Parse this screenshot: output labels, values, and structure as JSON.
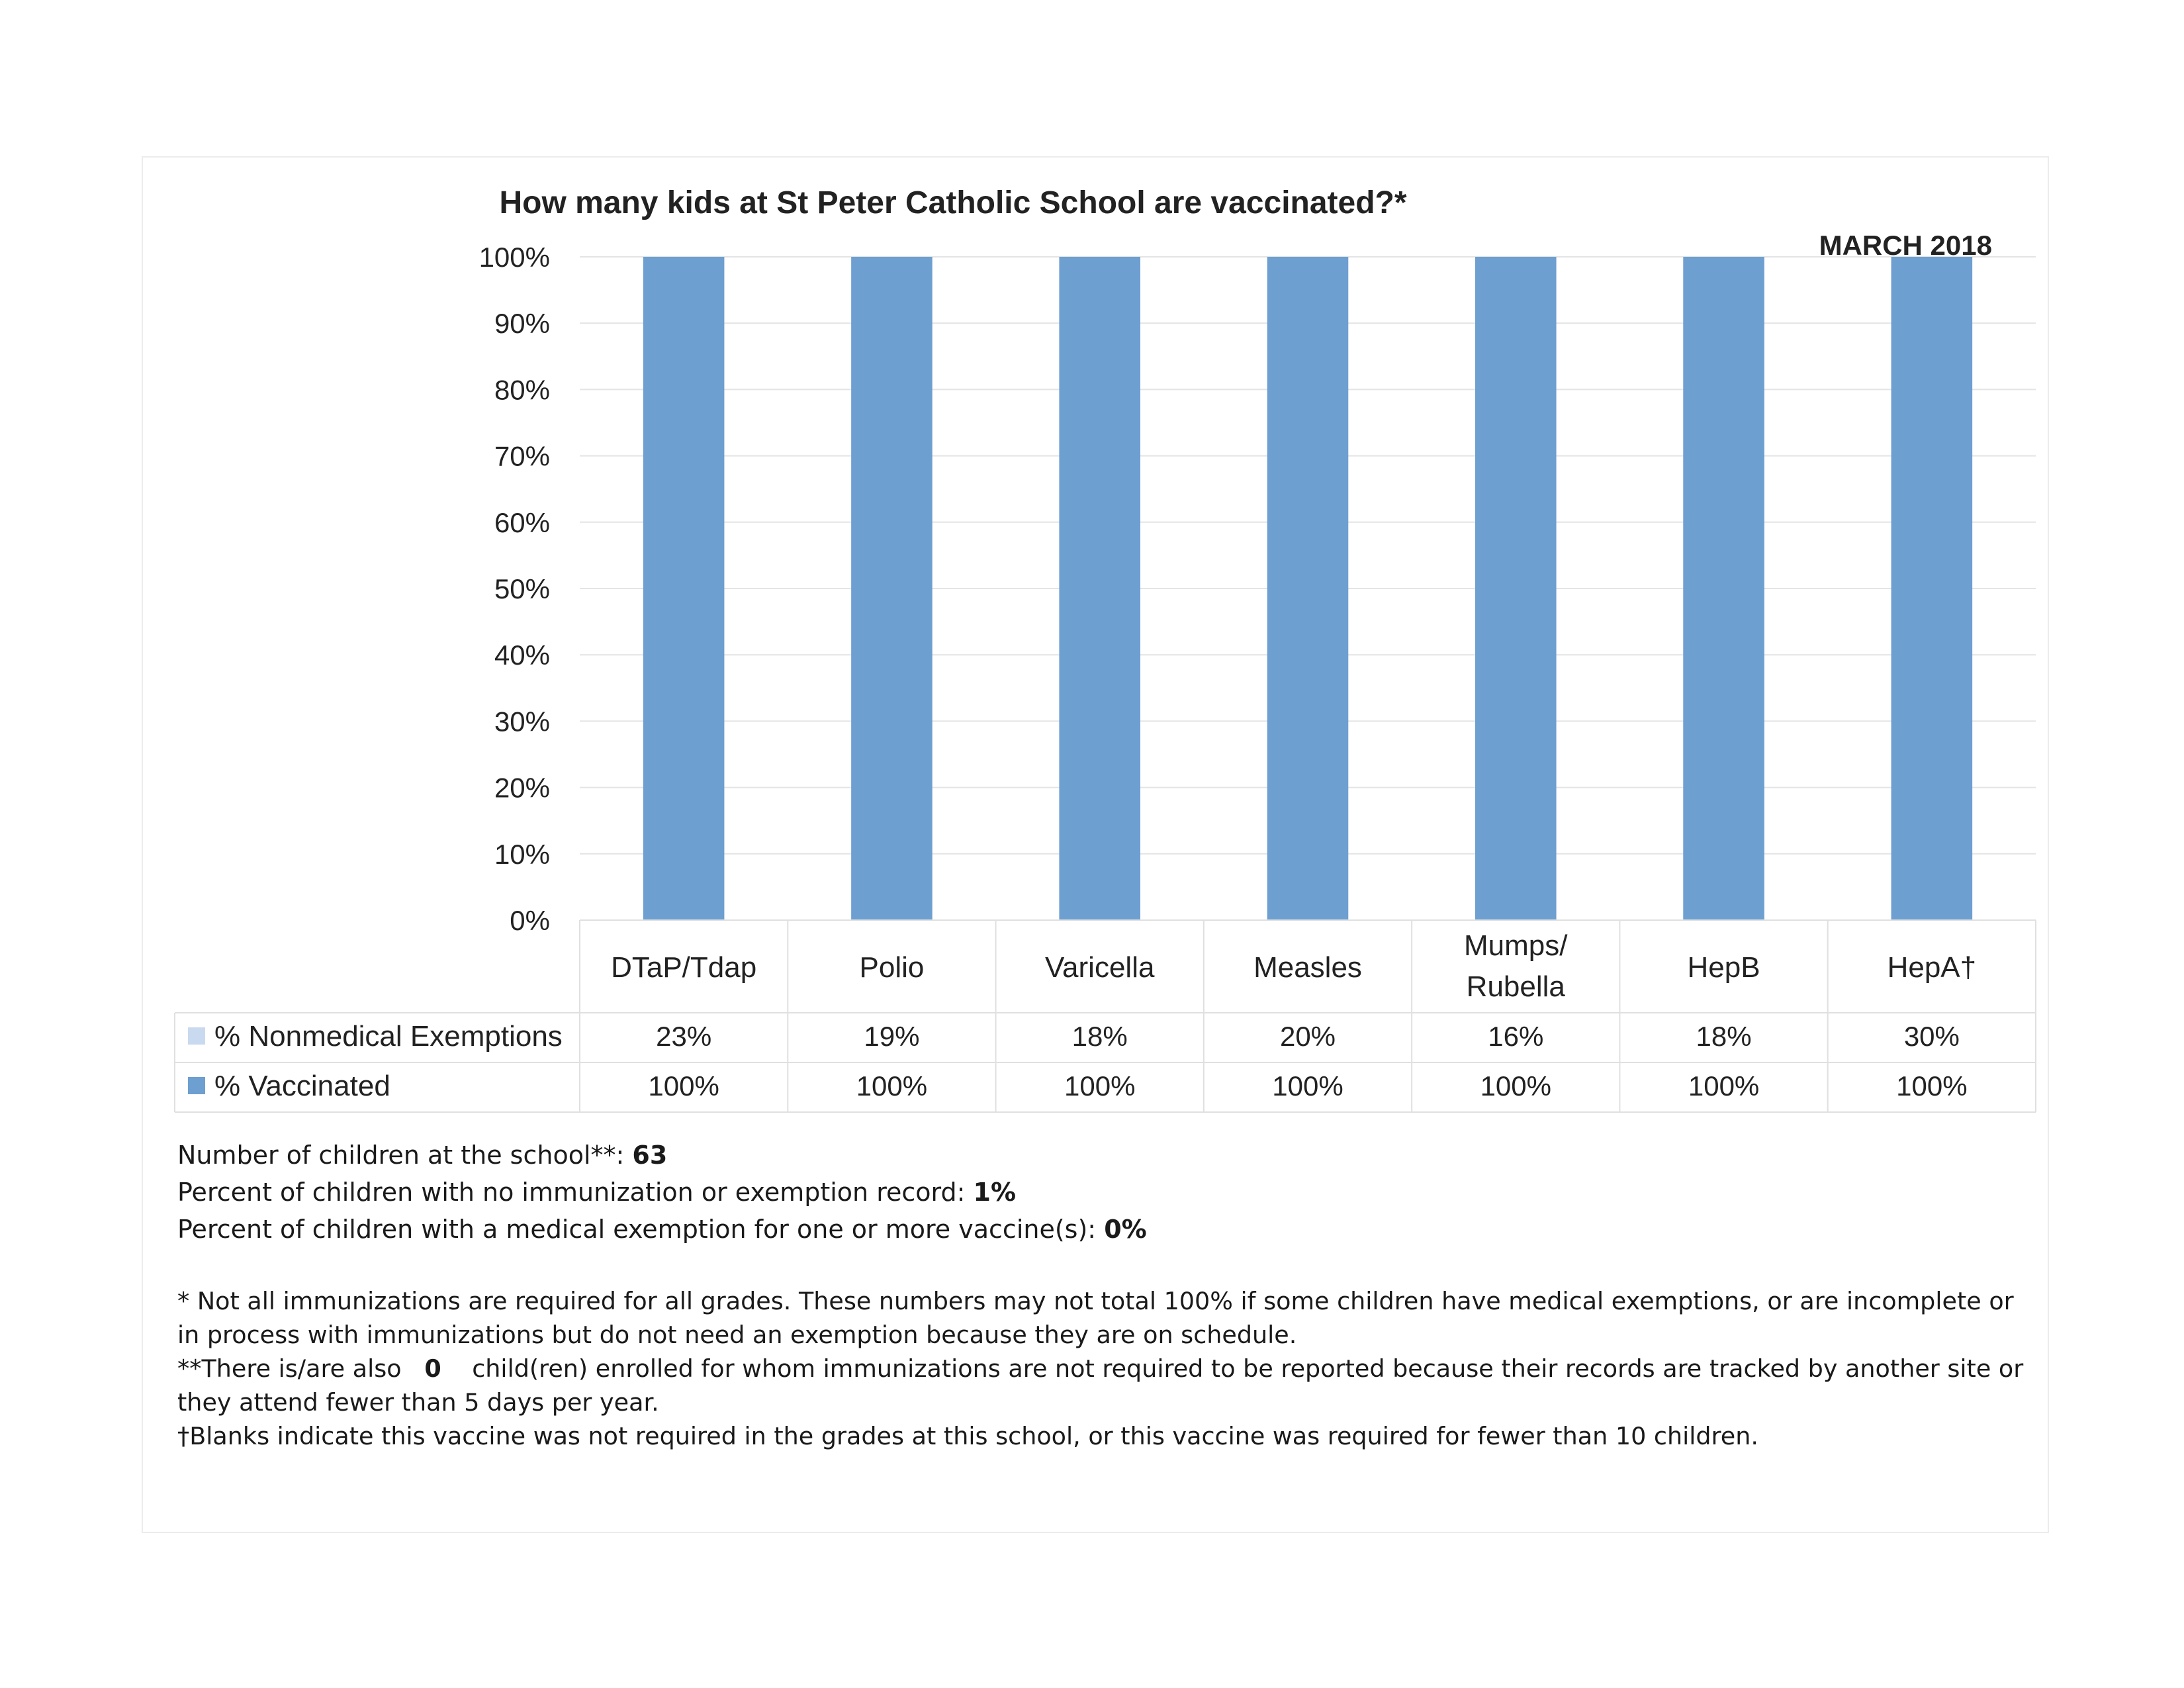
{
  "chart_data": {
    "type": "bar",
    "title": "How many kids at St Peter Catholic School are vaccinated?*",
    "date_label": "MARCH 2018",
    "categories": [
      "DTaP/Tdap",
      "Polio",
      "Varicella",
      "Measles",
      "Mumps/ Rubella",
      "HepB",
      "HepA†"
    ],
    "category_lines": [
      [
        "DTaP/Tdap"
      ],
      [
        "Polio"
      ],
      [
        "Varicella"
      ],
      [
        "Measles"
      ],
      [
        "Mumps/",
        "Rubella"
      ],
      [
        "HepB"
      ],
      [
        "HepA†"
      ]
    ],
    "y_ticks": [
      "0%",
      "10%",
      "20%",
      "30%",
      "40%",
      "50%",
      "60%",
      "70%",
      "80%",
      "90%",
      "100%"
    ],
    "ylim": [
      0,
      100
    ],
    "grid": true,
    "series": [
      {
        "name": "% Nonmedical Exemptions",
        "color": "#c9d9ef",
        "values": [
          23,
          19,
          18,
          20,
          16,
          18,
          30
        ],
        "labels": [
          "23%",
          "19%",
          "18%",
          "20%",
          "16%",
          "18%",
          "30%"
        ],
        "plotted": false
      },
      {
        "name": "% Vaccinated",
        "color": "#6d9fd1",
        "values": [
          100,
          100,
          100,
          100,
          100,
          100,
          100
        ],
        "labels": [
          "100%",
          "100%",
          "100%",
          "100%",
          "100%",
          "100%",
          "100%"
        ],
        "plotted": true
      }
    ]
  },
  "stats": {
    "children_label": "Number of children at the school**:",
    "children_value": "63",
    "no_record_label": "Percent of children with no immunization or exemption record:",
    "no_record_value": "1%",
    "medical_label": "Percent of children with a medical exemption for one or more vaccine(s):",
    "medical_value": "0%"
  },
  "notes": {
    "note1": "* Not all immunizations are required for all grades. These numbers may not total 100% if some children have medical exemptions, or are incomplete or in process with immunizations but do not need an exemption because they are on schedule.",
    "note2_prefix": "**There is/are also",
    "note2_value": "0",
    "note2_suffix": "child(ren) enrolled for whom immunizations are not required to be reported because their records are tracked by another site or they attend fewer than 5 days per year.",
    "note3": "†Blanks indicate this vaccine was not required in the grades at this school, or this vaccine was required for fewer than 10 children."
  }
}
